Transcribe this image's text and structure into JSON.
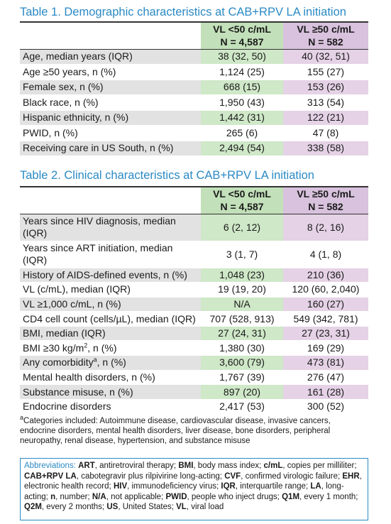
{
  "table1": {
    "title": "Table 1. Demographic characteristics at CAB+RPV LA initiation",
    "columns": [
      {
        "line1": "VL <50 c/mL",
        "line2": "N = 4,587"
      },
      {
        "line1": "VL ≥50 c/mL",
        "line2": "N = 582"
      }
    ],
    "rows": [
      {
        "label": "Age, median years (IQR)",
        "values": [
          "38 (32, 50)",
          "40 (32, 51)"
        ]
      },
      {
        "label": "Age ≥50 years, n (%)",
        "values": [
          "1,124 (25)",
          "155 (27)"
        ]
      },
      {
        "label": "Female sex, n (%)",
        "values": [
          "668 (15)",
          "153 (26)"
        ]
      },
      {
        "label": "Black race, n (%)",
        "values": [
          "1,950 (43)",
          "313 (54)"
        ]
      },
      {
        "label": "Hispanic ethnicity, n (%)",
        "values": [
          "1,442 (31)",
          "122 (21)"
        ]
      },
      {
        "label": "PWID, n (%)",
        "values": [
          "265 (6)",
          "47 (8)"
        ]
      },
      {
        "label": "Receiving care in US South, n (%)",
        "values": [
          "2,494 (54)",
          "338 (58)"
        ]
      }
    ]
  },
  "table2": {
    "title": "Table 2. Clinical characteristics at CAB+RPV LA initiation",
    "columns": [
      {
        "line1": "VL <50 c/mL",
        "line2": "N = 4,587"
      },
      {
        "line1": "VL ≥50 c/mL",
        "line2": "N = 582"
      }
    ],
    "rows": [
      {
        "label": "Years since HIV diagnosis, median (IQR)",
        "values": [
          "6 (2, 12)",
          "8 (2, 16)"
        ]
      },
      {
        "label": "Years since ART initiation, median (IQR)",
        "values": [
          "3 (1, 7)",
          "4 (1, 8)"
        ]
      },
      {
        "label": "History of AIDS-defined events, n (%)",
        "values": [
          "1,048 (23)",
          "210 (36)"
        ]
      },
      {
        "label": "VL (c/mL), median (IQR)",
        "values": [
          "19 (19, 20)",
          "120 (60, 2,040)"
        ]
      },
      {
        "label": "VL ≥1,000 c/mL, n (%)",
        "values": [
          "N/A",
          "160 (27)"
        ]
      },
      {
        "label": "CD4 cell count (cells/µL), median (IQR)",
        "values": [
          "707 (528, 913)",
          "549 (342, 781)"
        ]
      },
      {
        "label": "BMI, median (IQR)",
        "values": [
          "27 (24, 31)",
          "27 (23, 31)"
        ]
      },
      {
        "label": "BMI ≥30 kg/m",
        "label_sup": "2",
        "label_after": ", n (%)",
        "values": [
          "1,380 (30)",
          "169 (29)"
        ]
      },
      {
        "label": "Any comorbidity",
        "label_sup": "a",
        "label_after": ", n (%)",
        "values": [
          "3,600 (79)",
          "473 (81)"
        ]
      },
      {
        "label": "Mental health disorders, n (%)",
        "values": [
          "1,767 (39)",
          "276 (47)"
        ]
      },
      {
        "label": "Substance misuse, n (%)",
        "values": [
          "897 (20)",
          "161 (28)"
        ]
      },
      {
        "label": "Endocrine disorders",
        "values": [
          "2,417 (53)",
          "300 (52)"
        ]
      }
    ],
    "footnote": {
      "marker": "a",
      "text": "Categories included: Autoimmune disease, cardiovascular disease, invasive cancers, endocrine disorders, mental health disorders, liver disease, bone disorders, peripheral neuropathy, renal disease, hypertension, and substance misuse"
    }
  },
  "abbreviations": {
    "heading": "Abbreviations: ",
    "items": [
      {
        "term": "ART",
        "text": ", antiretroviral therapy; "
      },
      {
        "term": "BMI",
        "text": ", body mass index; "
      },
      {
        "term": "c/mL",
        "text": ", copies per milliliter; "
      },
      {
        "term": "CAB+RPV LA",
        "text": ", cabotegravir plus rilpivirine long-acting; "
      },
      {
        "term": "CVF",
        "text": ", confirmed virologic failure; "
      },
      {
        "term": "EHR",
        "text": ", electronic health record; "
      },
      {
        "term": "HIV",
        "text": ", immunodeficiency virus; "
      },
      {
        "term": "IQR",
        "text": ", interquartile range; "
      },
      {
        "term": "LA",
        "text": ", long-acting; "
      },
      {
        "term": "n",
        "text": ", number; "
      },
      {
        "term": "N/A",
        "text": ", not applicable; "
      },
      {
        "term": "PWID",
        "text": ", people who inject drugs; "
      },
      {
        "term": "Q1M",
        "text": ", every 1 month; "
      },
      {
        "term": "Q2M",
        "text": ", every 2 months; "
      },
      {
        "term": "US",
        "text": ", United States; "
      },
      {
        "term": "VL",
        "text": ", viral load"
      }
    ]
  }
}
